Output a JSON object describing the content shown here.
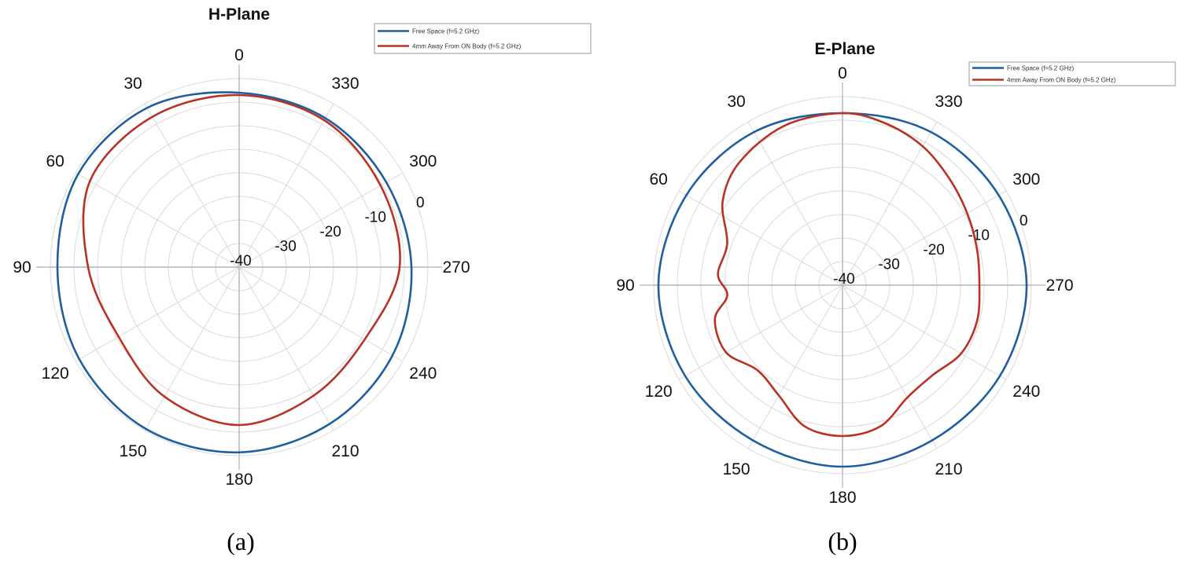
{
  "chart_data": [
    {
      "type": "polar",
      "title": "H-Plane",
      "caption": "(a)",
      "angle_ticks": [
        "0",
        "30",
        "60",
        "90",
        "120",
        "150",
        "180",
        "210",
        "240",
        "270",
        "300",
        "330"
      ],
      "radial_ticks": [
        "-40",
        "-30",
        "-20",
        "-10",
        "0"
      ],
      "rlim": [
        -40,
        0
      ],
      "angle_direction": "counterclockwise",
      "zero_location": "top",
      "grid": true,
      "legend_position": "top-right",
      "series": [
        {
          "name": "Free Space (f=5.2 GHz)",
          "color": "#1f5fa0",
          "theta": [
            0,
            30,
            60,
            90,
            120,
            150,
            180,
            210,
            240,
            270,
            300,
            330
          ],
          "r": [
            -3.0,
            -1.0,
            -0.6,
            -1.5,
            -0.9,
            -0.4,
            -0.7,
            -1.6,
            -2.5,
            -3.5,
            -4.0,
            -3.5
          ]
        },
        {
          "name": "4mm Away From ON Body (f=5.2 GHz)",
          "color": "#b83226",
          "theta": [
            0,
            30,
            60,
            90,
            120,
            150,
            180,
            210,
            240,
            270,
            300,
            330
          ],
          "r": [
            -3.5,
            -3.2,
            -3.5,
            -8.0,
            -10.5,
            -8.3,
            -6.5,
            -8.5,
            -9.3,
            -6.0,
            -5.4,
            -4.0
          ]
        }
      ]
    },
    {
      "type": "polar",
      "title": "E-Plane",
      "caption": "(b)",
      "angle_ticks": [
        "0",
        "30",
        "60",
        "90",
        "120",
        "150",
        "180",
        "210",
        "240",
        "270",
        "300",
        "330"
      ],
      "radial_ticks": [
        "-40",
        "-30",
        "-20",
        "-10",
        "0"
      ],
      "rlim": [
        -40,
        0
      ],
      "angle_direction": "counterclockwise",
      "zero_location": "top",
      "grid": true,
      "legend_position": "top-right",
      "series": [
        {
          "name": "Free Space (f=5.2 GHz)",
          "color": "#1f5fa0",
          "theta": [
            0,
            30,
            60,
            90,
            120,
            150,
            180,
            210,
            240,
            270,
            300,
            330
          ],
          "r": [
            -3.5,
            -2.5,
            -1.8,
            -1.0,
            -1.5,
            -2.0,
            -1.5,
            -2.0,
            -1.5,
            -1.0,
            -1.8,
            -2.5
          ]
        },
        {
          "name": "4mm Away From ON Body (f=5.2 GHz)",
          "color": "#b83226",
          "theta": [
            0,
            20,
            40,
            55,
            70,
            85,
            95,
            105,
            120,
            135,
            150,
            165,
            180,
            195,
            210,
            225,
            240,
            255,
            270,
            285,
            300,
            315,
            330,
            345
          ],
          "r": [
            -3.5,
            -4.0,
            -6.0,
            -9.0,
            -14.0,
            -13.5,
            -15.5,
            -12.0,
            -11.5,
            -14.5,
            -13.0,
            -9.0,
            -8.0,
            -9.0,
            -12.5,
            -13.0,
            -11.0,
            -10.5,
            -11.0,
            -10.5,
            -9.5,
            -8.0,
            -6.0,
            -4.5
          ]
        }
      ]
    }
  ]
}
